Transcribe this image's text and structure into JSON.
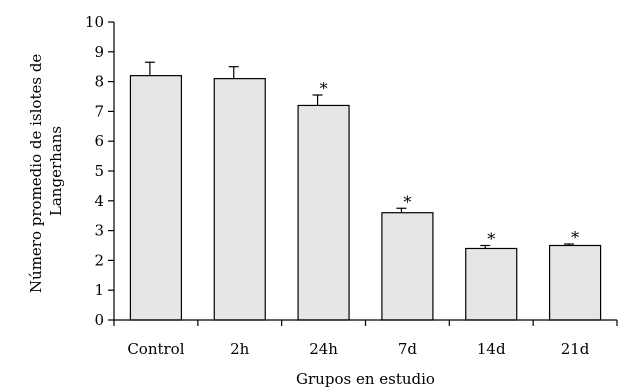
{
  "chart_data": {
    "type": "bar",
    "categories": [
      "Control",
      "2h",
      "24h",
      "7d",
      "14d",
      "21d"
    ],
    "values": [
      8.2,
      8.1,
      7.2,
      3.6,
      2.4,
      2.5
    ],
    "errors": [
      0.45,
      0.4,
      0.35,
      0.15,
      0.1,
      0.05
    ],
    "significant": [
      false,
      false,
      true,
      true,
      true,
      true
    ],
    "significance_marker": "*",
    "ylim": [
      0,
      10
    ],
    "yticks": [
      "0",
      "1",
      "2",
      "3",
      "4",
      "5",
      "6",
      "7",
      "8",
      "9",
      "10"
    ],
    "xlabel": "Grupos en estudio",
    "ylabel_lines": [
      "Número promedio de islotes de",
      "Langerhans"
    ],
    "grid": false,
    "colors": {
      "bar_fill": "#e6e6e6",
      "bar_stroke": "#000000"
    }
  }
}
